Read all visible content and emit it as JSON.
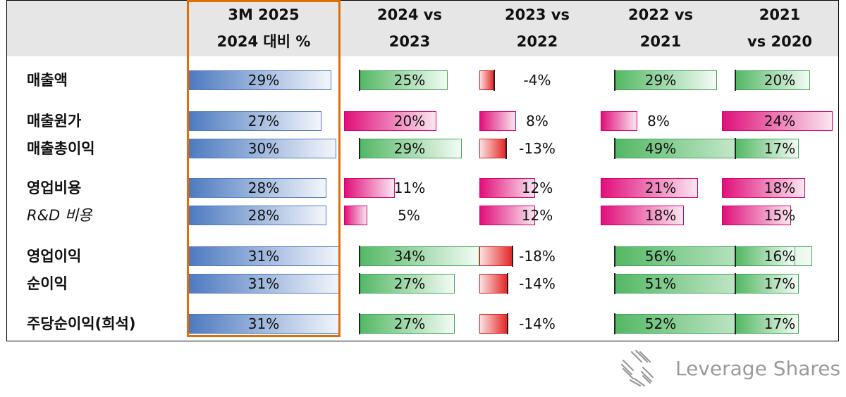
{
  "chart_data": {
    "type": "table",
    "columns": [
      {
        "lines": [
          "3M 2025",
          "2024 대비 %"
        ]
      },
      {
        "lines": [
          "2024 vs",
          "2023"
        ]
      },
      {
        "lines": [
          "2023 vs",
          "2022"
        ]
      },
      {
        "lines": [
          "2022 vs",
          "2021"
        ]
      },
      {
        "lines": [
          "2021",
          "vs 2020"
        ]
      }
    ],
    "rows": [
      {
        "label": "매출액",
        "italic": false,
        "values": [
          29,
          25,
          -4,
          29,
          20
        ],
        "labels": [
          "29%",
          "25%",
          "-4%",
          "29%",
          "20%"
        ]
      },
      {
        "label": "매출원가",
        "italic": false,
        "values": [
          27,
          20,
          8,
          8,
          24
        ],
        "labels": [
          "27%",
          "20%",
          "8%",
          "8%",
          "24%"
        ]
      },
      {
        "label": "매출총이익",
        "italic": false,
        "values": [
          30,
          29,
          -13,
          49,
          17
        ],
        "labels": [
          "30%",
          "29%",
          "-13%",
          "49%",
          "17%"
        ]
      },
      {
        "label": "영업비용",
        "italic": false,
        "values": [
          28,
          11,
          12,
          21,
          18
        ],
        "labels": [
          "28%",
          "11%",
          "12%",
          "21%",
          "18%"
        ]
      },
      {
        "label": "R&D 비용",
        "italic": true,
        "values": [
          28,
          5,
          12,
          18,
          15
        ],
        "labels": [
          "28%",
          "5%",
          "12%",
          "18%",
          "15%"
        ]
      },
      {
        "label": "영업이익",
        "italic": false,
        "values": [
          31,
          34,
          -18,
          56,
          16
        ],
        "labels": [
          "31%",
          "34%",
          "-18%",
          "56%",
          "16%"
        ]
      },
      {
        "label": "순이익",
        "italic": false,
        "values": [
          31,
          27,
          -14,
          51,
          17
        ],
        "labels": [
          "31%",
          "27%",
          "-14%",
          "51%",
          "17%"
        ]
      },
      {
        "label": "주당순이익(희석)",
        "italic": false,
        "values": [
          31,
          27,
          -14,
          52,
          17
        ],
        "labels": [
          "31%",
          "27%",
          "-14%",
          "52%",
          "17%"
        ]
      }
    ],
    "cost_rows": [
      "매출원가",
      "영업비용",
      "R&D 비용"
    ],
    "colors": {
      "highlight_column": "#4e7bc0",
      "positive": "#54b865",
      "negative": "#e52727",
      "cost": "#e0107a",
      "highlight_border": "#e36c09"
    }
  },
  "brand": {
    "name": "Leverage Shares",
    "icon": "leverage-shares-logo-icon"
  }
}
